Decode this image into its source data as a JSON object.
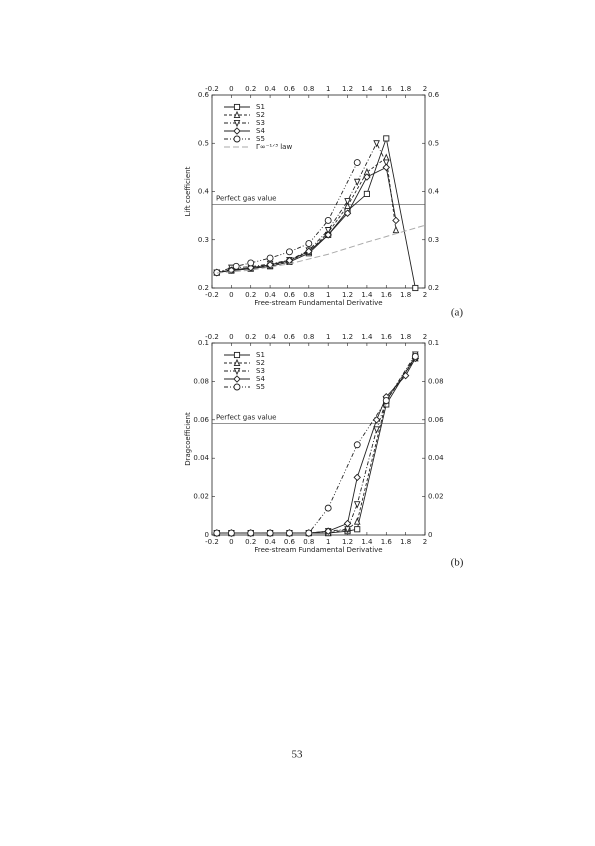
{
  "chart_data": [
    {
      "type": "line",
      "y_label": "Lift coefficient",
      "x_label": "Free-stream Fundamental Derivative",
      "xlim": [
        -0.2,
        2
      ],
      "xticks": [
        -0.2,
        0,
        0.2,
        0.4,
        0.6,
        0.8,
        1,
        1.2,
        1.4,
        1.6,
        1.8,
        2
      ],
      "ylim": [
        0.2,
        0.6
      ],
      "yticks": [
        0.2,
        0.3,
        0.4,
        0.5,
        0.6
      ],
      "legend": "upper-left",
      "annotations": [
        {
          "text": "Perfect gas value",
          "y": 0.373
        }
      ],
      "series": [
        {
          "name": "S1",
          "color": "#222222",
          "marker": "square",
          "linestyle": "solid",
          "x": [
            -0.15,
            0,
            0.2,
            0.4,
            0.6,
            0.8,
            1.0,
            1.2,
            1.4,
            1.6,
            1.9
          ],
          "values": [
            0.232,
            0.236,
            0.24,
            0.245,
            0.254,
            0.272,
            0.31,
            0.36,
            0.395,
            0.51,
            0.2
          ]
        },
        {
          "name": "S2",
          "color": "#222222",
          "marker": "triangle",
          "linestyle": "dashed",
          "x": [
            -0.15,
            0,
            0.2,
            0.4,
            0.6,
            0.8,
            1.0,
            1.2,
            1.4,
            1.6,
            1.7
          ],
          "values": [
            0.232,
            0.238,
            0.241,
            0.247,
            0.256,
            0.275,
            0.315,
            0.37,
            0.44,
            0.47,
            0.32
          ]
        },
        {
          "name": "S3",
          "color": "#222222",
          "marker": "triangle-down",
          "linestyle": "dashdot",
          "x": [
            -0.15,
            0,
            0.2,
            0.4,
            0.6,
            0.8,
            1.0,
            1.2,
            1.3,
            1.5,
            1.6
          ],
          "values": [
            0.232,
            0.242,
            0.244,
            0.25,
            0.258,
            0.278,
            0.32,
            0.38,
            0.42,
            0.5,
            0.46
          ]
        },
        {
          "name": "S4",
          "color": "#222222",
          "marker": "diamond",
          "linestyle": "solid",
          "x": [
            -0.15,
            0,
            0.2,
            0.4,
            0.6,
            0.8,
            1.0,
            1.2,
            1.4,
            1.6,
            1.7
          ],
          "values": [
            0.232,
            0.237,
            0.242,
            0.248,
            0.257,
            0.276,
            0.31,
            0.355,
            0.43,
            0.45,
            0.34
          ]
        },
        {
          "name": "S5",
          "color": "#222222",
          "marker": "circle",
          "linestyle": "dashdotdot",
          "x": [
            -0.15,
            0.05,
            0.2,
            0.4,
            0.6,
            0.8,
            1.0,
            1.3
          ],
          "values": [
            0.232,
            0.245,
            0.252,
            0.262,
            0.275,
            0.292,
            0.34,
            0.46
          ]
        },
        {
          "name": "Γ∞⁻¹ᐟ³ law",
          "color": "#aaaaaa",
          "marker": "none",
          "linestyle": "longdash",
          "x": [
            -0.15,
            0.2,
            0.6,
            1.0,
            1.4,
            2.0
          ],
          "values": [
            0.231,
            0.237,
            0.25,
            0.27,
            0.295,
            0.33
          ]
        }
      ]
    },
    {
      "type": "line",
      "y_label": "Dragcoefficient",
      "x_label": "Free-stream Fundamental Derivative",
      "xlim": [
        -0.2,
        2
      ],
      "xticks": [
        -0.2,
        0,
        0.2,
        0.4,
        0.6,
        0.8,
        1,
        1.2,
        1.4,
        1.6,
        1.8,
        2
      ],
      "ylim": [
        0,
        0.1
      ],
      "yticks": [
        0,
        0.02,
        0.04,
        0.06,
        0.08,
        0.1
      ],
      "legend": "upper-left",
      "annotations": [
        {
          "text": "Perfect gas value",
          "y": 0.058
        }
      ],
      "series": [
        {
          "name": "S1",
          "color": "#222222",
          "marker": "square",
          "linestyle": "solid",
          "x": [
            -0.15,
            0,
            0.2,
            0.4,
            0.6,
            0.8,
            1.0,
            1.2,
            1.3,
            1.6,
            1.9
          ],
          "values": [
            0.001,
            0.001,
            0.001,
            0.001,
            0.001,
            0.001,
            0.001,
            0.002,
            0.003,
            0.068,
            0.093
          ]
        },
        {
          "name": "S2",
          "color": "#222222",
          "marker": "triangle",
          "linestyle": "dashed",
          "x": [
            -0.15,
            0,
            0.2,
            0.4,
            0.6,
            0.8,
            1.0,
            1.2,
            1.3,
            1.6,
            1.9
          ],
          "values": [
            0.001,
            0.001,
            0.001,
            0.001,
            0.001,
            0.001,
            0.001,
            0.003,
            0.007,
            0.07,
            0.092
          ]
        },
        {
          "name": "S3",
          "color": "#222222",
          "marker": "triangle-down",
          "linestyle": "dashdot",
          "x": [
            -0.15,
            0,
            0.2,
            0.4,
            0.6,
            0.8,
            1.0,
            1.2,
            1.3,
            1.5,
            1.6,
            1.9
          ],
          "values": [
            0.001,
            0.001,
            0.001,
            0.001,
            0.001,
            0.001,
            0.002,
            0.003,
            0.016,
            0.055,
            0.07,
            0.094
          ]
        },
        {
          "name": "S4",
          "color": "#222222",
          "marker": "diamond",
          "linestyle": "solid",
          "x": [
            -0.15,
            0,
            0.2,
            0.4,
            0.6,
            0.8,
            1.0,
            1.2,
            1.3,
            1.5,
            1.6,
            1.8,
            1.9
          ],
          "values": [
            0.001,
            0.001,
            0.001,
            0.001,
            0.001,
            0.001,
            0.002,
            0.006,
            0.03,
            0.06,
            0.072,
            0.083,
            0.092
          ]
        },
        {
          "name": "S5",
          "color": "#222222",
          "marker": "circle",
          "linestyle": "dashdotdot",
          "x": [
            -0.15,
            0,
            0.2,
            0.4,
            0.6,
            0.8,
            1.0,
            1.3,
            1.6,
            1.9
          ],
          "values": [
            0.001,
            0.001,
            0.001,
            0.001,
            0.001,
            0.001,
            0.014,
            0.047,
            0.07,
            0.093
          ]
        }
      ]
    }
  ],
  "panel_labels": [
    "(a)",
    "(b)"
  ],
  "page_number": "53"
}
